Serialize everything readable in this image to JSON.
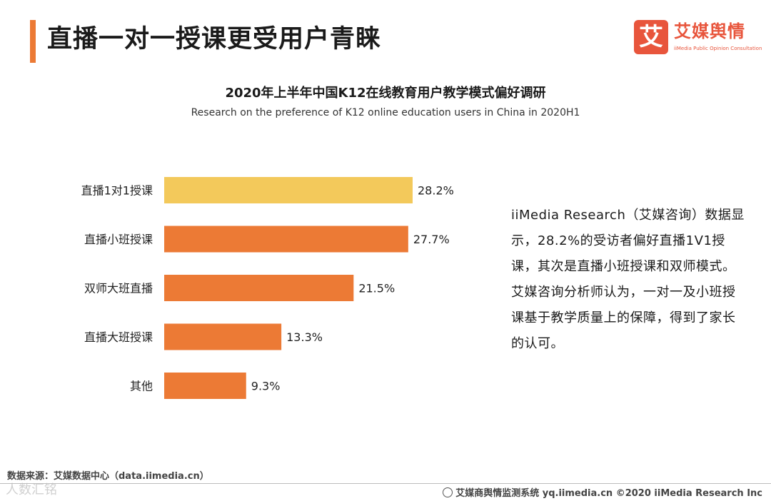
{
  "page": {
    "title": "直播一对一授课更受用户青睐"
  },
  "logo": {
    "mark": "艾",
    "name_cn": "艾媒舆情",
    "name_en": "iiMedia Public Opinion Consultation"
  },
  "chart_data": {
    "type": "bar",
    "orientation": "horizontal",
    "title": "2020年上半年中国K12在线教育用户教学模式偏好调研",
    "subtitle": "Research on the preference of K12 online education users in China in 2020H1",
    "categories": [
      "直播1对1授课",
      "直播小班授课",
      "双师大班直播",
      "直播大班授课",
      "其他"
    ],
    "values": [
      28.2,
      27.7,
      21.5,
      13.3,
      9.3
    ],
    "value_labels": [
      "28.2%",
      "27.7%",
      "21.5%",
      "13.3%",
      "9.3%"
    ],
    "unit": "%",
    "highlight_color": "#f3c95b",
    "bar_color": "#ec7a35",
    "xlim": [
      0,
      28.2
    ],
    "grid": false,
    "legend": "none"
  },
  "summary": {
    "text": "iiMedia Research（艾媒咨询）数据显示，28.2%的受访者偏好直播1V1授课，其次是直播小班授课和双师模式。艾媒咨询分析师认为，一对一及小班授课基于教学质量上的保障，得到了家长的认可。"
  },
  "footer": {
    "source": "数据来源：艾媒数据中心（data.iimedia.cn）",
    "right": "艾媒商舆情监测系统 yq.iimedia.cn  ©2020  iiMedia Research  Inc",
    "watermark": "人数汇铭"
  }
}
